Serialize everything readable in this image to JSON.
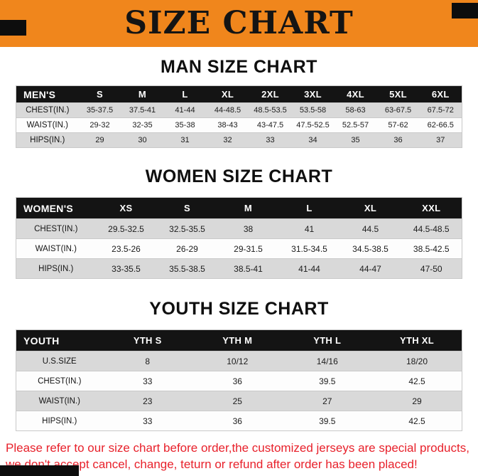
{
  "banner": {
    "title": "SIZE CHART",
    "bg_color": "#F0861C"
  },
  "sections": [
    {
      "heading": "MAN SIZE CHART",
      "table": {
        "header": [
          "MEN'S",
          "S",
          "M",
          "L",
          "XL",
          "2XL",
          "3XL",
          "4XL",
          "5XL",
          "6XL"
        ],
        "rows": [
          [
            "CHEST(IN.)",
            "35-37.5",
            "37.5-41",
            "41-44",
            "44-48.5",
            "48.5-53.5",
            "53.5-58",
            "58-63",
            "63-67.5",
            "67.5-72"
          ],
          [
            "WAIST(IN.)",
            "29-32",
            "32-35",
            "35-38",
            "38-43",
            "43-47.5",
            "47.5-52.5",
            "52.5-57",
            "57-62",
            "62-66.5"
          ],
          [
            "HIPS(IN.)",
            "29",
            "30",
            "31",
            "32",
            "33",
            "34",
            "35",
            "36",
            "37"
          ]
        ]
      }
    },
    {
      "heading": "WOMEN SIZE CHART",
      "table": {
        "header": [
          "WOMEN'S",
          "XS",
          "S",
          "M",
          "L",
          "XL",
          "XXL"
        ],
        "rows": [
          [
            "CHEST(IN.)",
            "29.5-32.5",
            "32.5-35.5",
            "38",
            "41",
            "44.5",
            "44.5-48.5"
          ],
          [
            "WAIST(IN.)",
            "23.5-26",
            "26-29",
            "29-31.5",
            "31.5-34.5",
            "34.5-38.5",
            "38.5-42.5"
          ],
          [
            "HIPS(IN.)",
            "33-35.5",
            "35.5-38.5",
            "38.5-41",
            "41-44",
            "44-47",
            "47-50"
          ]
        ]
      }
    },
    {
      "heading": "YOUTH SIZE CHART",
      "table": {
        "header": [
          "YOUTH",
          "YTH S",
          "YTH M",
          "YTH L",
          "YTH XL"
        ],
        "rows": [
          [
            "U.S.SIZE",
            "8",
            "10/12",
            "14/16",
            "18/20"
          ],
          [
            "CHEST(IN.)",
            "33",
            "36",
            "39.5",
            "42.5"
          ],
          [
            "WAIST(IN.)",
            "23",
            "25",
            "27",
            "29"
          ],
          [
            "HIPS(IN.)",
            "33",
            "36",
            "39.5",
            "42.5"
          ]
        ]
      }
    }
  ],
  "footer": {
    "lines": [
      "Please refer to our size chart before order,the customized jerseys are special products,",
      "we don't accept cancel, change, teturn or refund after order has been placed!"
    ]
  },
  "colors": {
    "banner_bg": "#F0861C",
    "table_header_bg": "#141414",
    "stripe_row_bg": "#D9D9D9",
    "footer_text": "#E8212B",
    "corner_block": "#0D0D0D"
  }
}
